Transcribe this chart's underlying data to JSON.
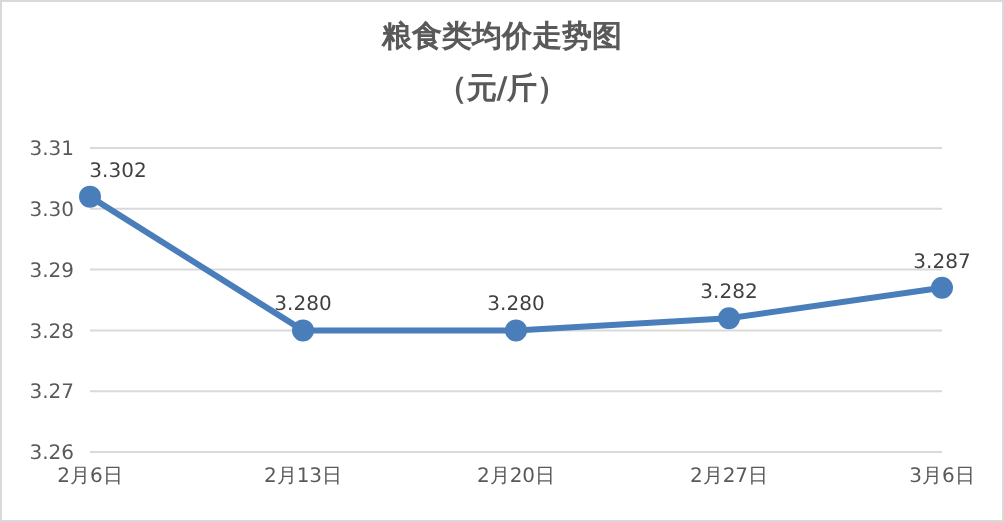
{
  "chart_data": {
    "type": "line",
    "title": "粮食类均价走势图",
    "subtitle": "（元/斤）",
    "categories": [
      "2月6日",
      "2月13日",
      "2月20日",
      "2月27日",
      "3月6日"
    ],
    "values": [
      3.302,
      3.28,
      3.28,
      3.282,
      3.287
    ],
    "value_labels": [
      "3.302",
      "3.280",
      "3.280",
      "3.282",
      "3.287"
    ],
    "color": "#4a7ebb",
    "ylim": [
      3.26,
      3.31
    ],
    "yticks": [
      {
        "value": 3.26,
        "label": "3.26"
      },
      {
        "value": 3.27,
        "label": "3.27"
      },
      {
        "value": 3.28,
        "label": "3.28"
      },
      {
        "value": 3.29,
        "label": "3.29"
      },
      {
        "value": 3.3,
        "label": "3.30"
      },
      {
        "value": 3.31,
        "label": "3.31"
      }
    ],
    "grid": "y",
    "marker": "circle"
  }
}
